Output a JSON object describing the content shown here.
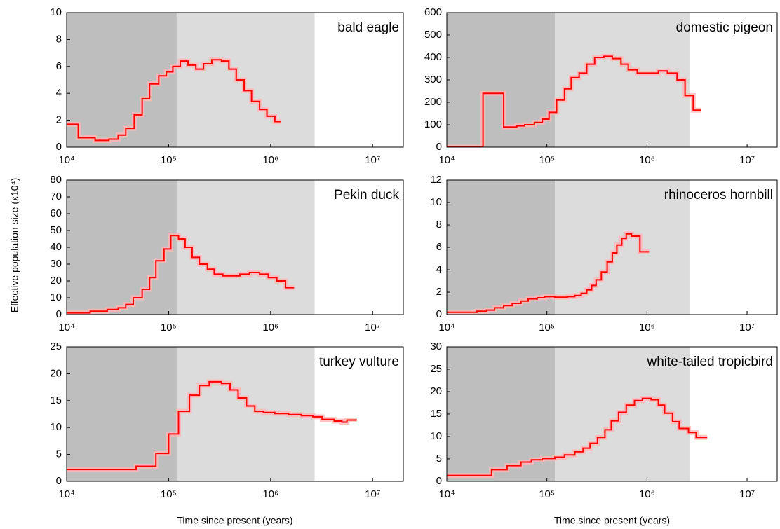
{
  "ylabel": "Effective population size (x10⁴)",
  "chart_data": [
    {
      "type": "line",
      "title": "bald eagle",
      "log_x": true,
      "color": "#ff0000",
      "x": [
        10000,
        13000,
        19000,
        26000,
        32000,
        38000,
        46000,
        55000,
        65000,
        80000,
        95000,
        110000,
        130000,
        155000,
        185000,
        220000,
        265000,
        330000,
        390000,
        460000,
        550000,
        650000,
        780000,
        920000,
        1100000,
        1250000
      ],
      "values": [
        1.7,
        0.7,
        0.5,
        0.6,
        0.9,
        1.4,
        2.4,
        3.6,
        4.7,
        5.3,
        5.6,
        6.0,
        6.4,
        6.1,
        5.8,
        6.2,
        6.5,
        6.4,
        5.8,
        5.0,
        4.2,
        3.4,
        2.8,
        2.3,
        1.9,
        1.9
      ],
      "xlim": [
        10000,
        20000000
      ],
      "ylim": [
        0,
        10
      ],
      "xticks": [
        {
          "value": 10000,
          "label": "10⁴"
        },
        {
          "value": 100000,
          "label": "10⁵"
        },
        {
          "value": 1000000,
          "label": "10⁶"
        },
        {
          "value": 10000000,
          "label": "10⁷"
        }
      ],
      "yticks": [
        0,
        2,
        4,
        6,
        8,
        10
      ],
      "shading": [
        {
          "from": 10000,
          "to": 120000,
          "color": "#bebebe"
        },
        {
          "from": 120000,
          "to": 2700000,
          "color": "#dcdcdc"
        }
      ]
    },
    {
      "type": "line",
      "title": "domestic pigeon",
      "log_x": true,
      "color": "#ff0000",
      "x": [
        10000,
        23000,
        37000,
        50000,
        60000,
        75000,
        90000,
        105000,
        125000,
        150000,
        175000,
        210000,
        250000,
        300000,
        370000,
        450000,
        550000,
        650000,
        800000,
        1000000,
        1300000,
        1600000,
        2000000,
        2400000,
        2900000,
        3500000
      ],
      "values": [
        0,
        240,
        90,
        95,
        100,
        110,
        125,
        155,
        210,
        260,
        310,
        330,
        370,
        400,
        405,
        395,
        370,
        345,
        330,
        330,
        340,
        330,
        300,
        230,
        165,
        165
      ],
      "xlim": [
        10000,
        20000000
      ],
      "ylim": [
        0,
        600
      ],
      "xticks": [
        {
          "value": 10000,
          "label": "10⁴"
        },
        {
          "value": 100000,
          "label": "10⁵"
        },
        {
          "value": 1000000,
          "label": "10⁶"
        },
        {
          "value": 10000000,
          "label": "10⁷"
        }
      ],
      "yticks": [
        0,
        100,
        200,
        300,
        400,
        500,
        600
      ],
      "shading": [
        {
          "from": 10000,
          "to": 120000,
          "color": "#bebebe"
        },
        {
          "from": 120000,
          "to": 2700000,
          "color": "#dcdcdc"
        }
      ]
    },
    {
      "type": "line",
      "title": "Pekin duck",
      "log_x": true,
      "color": "#ff0000",
      "x": [
        10000,
        17000,
        25000,
        32000,
        38000,
        45000,
        55000,
        65000,
        75000,
        90000,
        105000,
        125000,
        145000,
        170000,
        200000,
        240000,
        280000,
        340000,
        420000,
        500000,
        620000,
        780000,
        950000,
        1150000,
        1400000,
        1700000
      ],
      "values": [
        1,
        2,
        3,
        4,
        6,
        10,
        15,
        22,
        32,
        39,
        47,
        45,
        40,
        34,
        30,
        27,
        24,
        23,
        23,
        24,
        25,
        24,
        22,
        20,
        16,
        16
      ],
      "xlim": [
        10000,
        20000000
      ],
      "ylim": [
        0,
        80
      ],
      "xticks": [
        {
          "value": 10000,
          "label": "10⁴"
        },
        {
          "value": 100000,
          "label": "10⁵"
        },
        {
          "value": 1000000,
          "label": "10⁶"
        },
        {
          "value": 10000000,
          "label": "10⁷"
        }
      ],
      "yticks": [
        0,
        10,
        20,
        30,
        40,
        50,
        60,
        70,
        80
      ],
      "shading": [
        {
          "from": 10000,
          "to": 120000,
          "color": "#bebebe"
        },
        {
          "from": 120000,
          "to": 2700000,
          "color": "#dcdcdc"
        }
      ]
    },
    {
      "type": "line",
      "title": "rhinoceros hornbill",
      "log_x": true,
      "color": "#ff0000",
      "x": [
        10000,
        20000,
        25000,
        30000,
        37000,
        45000,
        55000,
        65000,
        80000,
        95000,
        120000,
        160000,
        190000,
        220000,
        250000,
        280000,
        310000,
        350000,
        400000,
        450000,
        500000,
        560000,
        620000,
        700000,
        850000,
        1050000
      ],
      "values": [
        0.2,
        0.3,
        0.4,
        0.6,
        0.8,
        1.0,
        1.2,
        1.4,
        1.5,
        1.6,
        1.55,
        1.6,
        1.7,
        1.9,
        2.2,
        2.6,
        3.1,
        3.8,
        4.7,
        5.5,
        6.2,
        6.8,
        7.2,
        7.0,
        5.6,
        5.6
      ],
      "xlim": [
        10000,
        20000000
      ],
      "ylim": [
        0,
        12
      ],
      "xticks": [
        {
          "value": 10000,
          "label": "10⁴"
        },
        {
          "value": 100000,
          "label": "10⁵"
        },
        {
          "value": 1000000,
          "label": "10⁶"
        },
        {
          "value": 10000000,
          "label": "10⁷"
        }
      ],
      "yticks": [
        0,
        2,
        4,
        6,
        8,
        10,
        12
      ],
      "shading": [
        {
          "from": 10000,
          "to": 120000,
          "color": "#bebebe"
        },
        {
          "from": 120000,
          "to": 2700000,
          "color": "#dcdcdc"
        }
      ]
    },
    {
      "type": "line",
      "title": "turkey vulture",
      "log_x": true,
      "color": "#ff0000",
      "xlabel": "Time since present (years)",
      "x": [
        10000,
        48000,
        75000,
        100000,
        125000,
        160000,
        200000,
        250000,
        330000,
        400000,
        480000,
        580000,
        700000,
        850000,
        1100000,
        1500000,
        2000000,
        2600000,
        3200000,
        4200000,
        5000000,
        5600000,
        7000000
      ],
      "values": [
        2.2,
        2.8,
        5.2,
        8.8,
        13,
        16,
        17.8,
        18.5,
        18.2,
        17,
        15.5,
        14,
        13,
        12.8,
        12.6,
        12.4,
        12.2,
        12.0,
        11.5,
        11.2,
        11.0,
        11.4,
        11.4
      ],
      "xlim": [
        10000,
        20000000
      ],
      "ylim": [
        0,
        25
      ],
      "xticks": [
        {
          "value": 10000,
          "label": "10⁴"
        },
        {
          "value": 100000,
          "label": "10⁵"
        },
        {
          "value": 1000000,
          "label": "10⁶"
        },
        {
          "value": 10000000,
          "label": "10⁷"
        }
      ],
      "yticks": [
        0,
        5,
        10,
        15,
        20,
        25
      ],
      "shading": [
        {
          "from": 10000,
          "to": 120000,
          "color": "#bebebe"
        },
        {
          "from": 120000,
          "to": 2700000,
          "color": "#dcdcdc"
        }
      ]
    },
    {
      "type": "line",
      "title": "white-tailed tropicbird",
      "log_x": true,
      "color": "#ff0000",
      "xlabel": "Time since present (years)",
      "x": [
        10000,
        28000,
        40000,
        55000,
        70000,
        90000,
        120000,
        150000,
        190000,
        230000,
        270000,
        320000,
        380000,
        440000,
        520000,
        620000,
        750000,
        900000,
        1100000,
        1300000,
        1500000,
        1800000,
        2100000,
        2600000,
        3100000,
        4000000
      ],
      "values": [
        1.3,
        2.6,
        3.5,
        4.3,
        4.8,
        5.1,
        5.4,
        5.9,
        6.6,
        7.4,
        8.5,
        9.8,
        11.5,
        13.5,
        15.4,
        17,
        18,
        18.5,
        18.2,
        17,
        15.2,
        13.3,
        11.8,
        10.9,
        9.8,
        9.8
      ],
      "xlim": [
        10000,
        20000000
      ],
      "ylim": [
        0,
        30
      ],
      "xticks": [
        {
          "value": 10000,
          "label": "10⁴"
        },
        {
          "value": 100000,
          "label": "10⁵"
        },
        {
          "value": 1000000,
          "label": "10⁶"
        },
        {
          "value": 10000000,
          "label": "10⁷"
        }
      ],
      "yticks": [
        0,
        5,
        10,
        15,
        20,
        25,
        30
      ],
      "shading": [
        {
          "from": 10000,
          "to": 120000,
          "color": "#bebebe"
        },
        {
          "from": 120000,
          "to": 2700000,
          "color": "#dcdcdc"
        }
      ]
    }
  ]
}
